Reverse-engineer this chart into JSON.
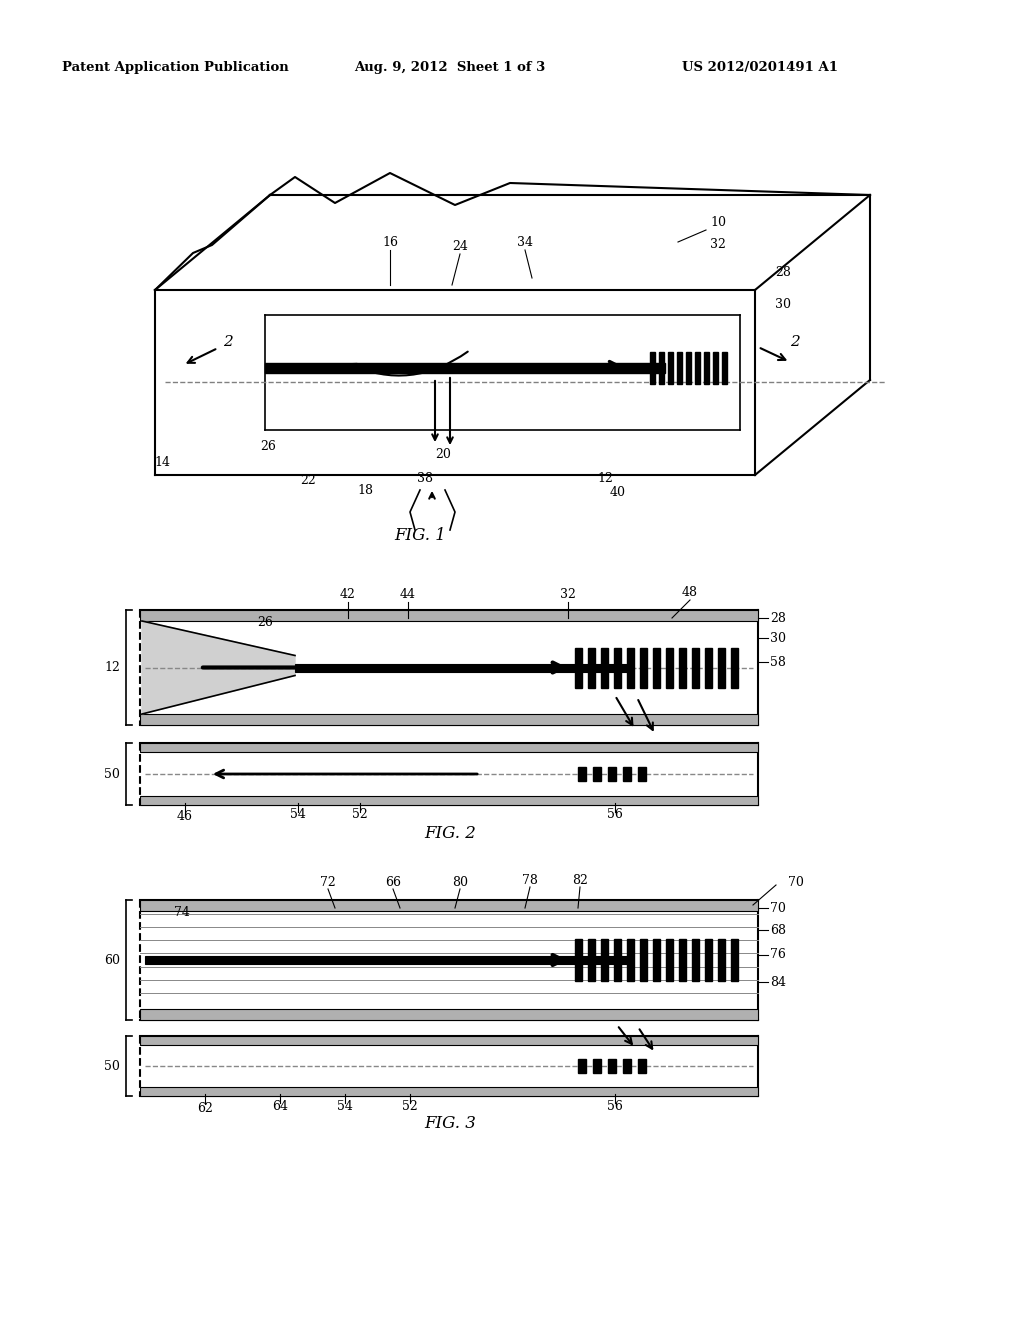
{
  "header_left": "Patent Application Publication",
  "header_mid": "Aug. 9, 2012  Sheet 1 of 3",
  "header_right": "US 2012/0201491 A1",
  "fig1_caption": "FIG. 1",
  "fig2_caption": "FIG. 2",
  "fig3_caption": "FIG. 3",
  "bg_color": "#ffffff",
  "line_color": "#000000",
  "gray_color": "#888888",
  "light_gray": "#bbbbbb"
}
